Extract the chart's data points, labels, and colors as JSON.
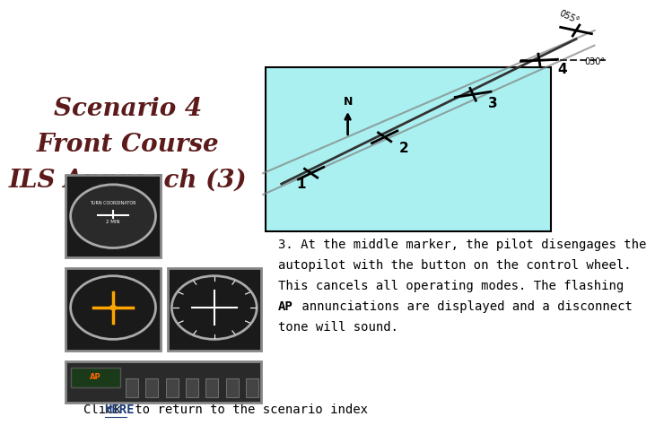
{
  "title_line1": "Scenario 4",
  "title_line2": "Front Course",
  "title_line3": "ILS Approach (3)",
  "title_color": "#5c1a1a",
  "title_fontsize": 20,
  "title_style": "italic",
  "title_weight": "bold",
  "description_line1": "3. At the middle marker, the pilot disengages the",
  "description_line2": "autopilot with the button on the control wheel.",
  "description_line3": "This cancels all operating modes. The flashing",
  "description_line4a": "AP",
  "description_line4b": " annunciations are displayed and a disconnect",
  "description_line5": "tone will sound.",
  "desc_fontsize": 10,
  "desc_color": "#000000",
  "footer_text1": "Click ",
  "footer_here": "HERE",
  "footer_text2": " to return to the scenario index",
  "footer_fontsize": 10,
  "footer_color": "#000000",
  "footer_link_color": "#1f3d7a",
  "bg_color": "#ffffff",
  "diagram_bg": "#aaf0f0",
  "diagram_border": "#000000"
}
